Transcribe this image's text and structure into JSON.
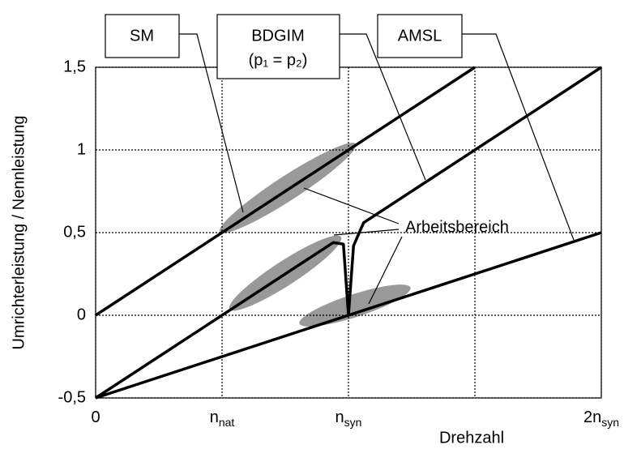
{
  "chart_data": {
    "type": "line",
    "ylabel": "Umrichterleistung / Nennleistung",
    "xlabel": "Drehzahl",
    "xlim": [
      0,
      2
    ],
    "ylim": [
      -0.5,
      1.5
    ],
    "xticks": [
      0,
      {
        "value": 0.5,
        "label": "n",
        "sub": "nat"
      },
      {
        "value": 1,
        "label": "n",
        "sub": "syn"
      },
      {
        "value": 1.5,
        "label": null
      },
      {
        "value": 2,
        "label": "2n",
        "sub": "syn"
      }
    ],
    "yticks": [
      {
        "value": -0.5,
        "label": "-0,5"
      },
      0,
      {
        "value": 0.5,
        "label": "0,5"
      },
      1,
      {
        "value": 1.5,
        "label": "1,5"
      }
    ],
    "grid": true,
    "series": [
      {
        "name": "SM",
        "color": "#000000",
        "x": [
          0,
          1.5
        ],
        "values": [
          0,
          1.5
        ]
      },
      {
        "name": "BDGIM",
        "color": "#000000",
        "x": [
          0,
          0.94,
          0.98,
          1.0,
          1.02,
          1.06,
          2
        ],
        "values": [
          -0.5,
          0.44,
          0.43,
          0,
          0.42,
          0.56,
          1.5
        ]
      },
      {
        "name": "AMSL",
        "color": "#000000",
        "x": [
          0,
          2
        ],
        "values": [
          -0.5,
          0.5
        ]
      }
    ],
    "annotations": {
      "bdgim_condition": "(p₁ = p₂)",
      "working_range": "Arbeitsbereich"
    }
  }
}
